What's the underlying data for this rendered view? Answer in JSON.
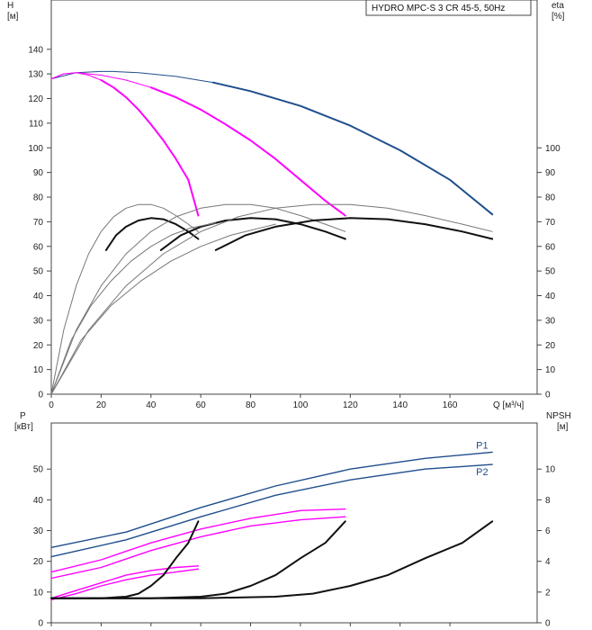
{
  "chart_data": [
    {
      "type": "line",
      "panel": "head-efficiency",
      "title": "HYDRO MPC-S 3 CR 45-5, 50Hz",
      "xlabel": "Q [м³/ч]",
      "ylabel": "H",
      "ylabel_unit": "[м]",
      "y2label": "eta",
      "y2label_unit": "[%]",
      "xlim": [
        0,
        195
      ],
      "ylim": [
        0,
        150
      ],
      "y2lim": [
        0,
        150
      ],
      "x_ticks": [
        "0",
        "20",
        "40",
        "60",
        "80",
        "100",
        "120",
        "140",
        "160",
        "Q [м³/ч]"
      ],
      "y_ticks": [
        "0",
        "10",
        "20",
        "30",
        "40",
        "50",
        "60",
        "70",
        "80",
        "90",
        "100",
        "110",
        "120",
        "130",
        "140"
      ],
      "y2_ticks": [
        "0",
        "10",
        "20",
        "30",
        "40",
        "50",
        "60",
        "70",
        "80",
        "90",
        "100"
      ],
      "colors": {
        "head_three_pumps": "#1f4e8c",
        "head_partial": "#ff00ff",
        "efficiency": "#111111",
        "efficiency_thin": "#777777"
      },
      "series": [
        {
          "kind": "head",
          "style": "thin-dark",
          "x": [
            0,
            10,
            20,
            25,
            35,
            50,
            65,
            80,
            100,
            120,
            140,
            160,
            177
          ],
          "y": [
            128,
            130.5,
            131,
            131,
            130.5,
            129,
            126.5,
            123,
            117,
            109,
            99,
            87,
            73
          ]
        },
        {
          "kind": "head",
          "style": "bold-dark",
          "x": [
            65,
            80,
            100,
            120,
            140,
            160,
            177
          ],
          "y": [
            126.5,
            123,
            117,
            109,
            99,
            87,
            73
          ]
        },
        {
          "kind": "head",
          "style": "thin-magenta",
          "x": [
            0,
            5,
            10,
            20,
            30,
            40,
            50,
            60,
            70,
            80,
            90,
            100,
            110,
            118
          ],
          "y": [
            128,
            130,
            130.5,
            129.5,
            127.5,
            124.5,
            120.5,
            115.5,
            109.5,
            103,
            95.5,
            87,
            78.5,
            72.5
          ]
        },
        {
          "kind": "head",
          "style": "bold-magenta",
          "x": [
            40,
            50,
            60,
            70,
            80,
            90,
            100,
            110,
            118
          ],
          "y": [
            124.5,
            120.5,
            115.5,
            109.5,
            103,
            95.5,
            87,
            78.5,
            72.5
          ]
        },
        {
          "kind": "head",
          "style": "thin-magenta",
          "x": [
            0,
            5,
            10,
            15,
            20,
            25,
            30,
            35,
            40,
            45,
            50,
            55,
            59
          ],
          "y": [
            128,
            130,
            130.5,
            129.5,
            127.5,
            124.5,
            120.5,
            115.5,
            109.5,
            103,
            95.5,
            87,
            72.5
          ]
        },
        {
          "kind": "head",
          "style": "bold-magenta",
          "x": [
            20,
            25,
            30,
            35,
            40,
            45,
            50,
            55,
            59
          ],
          "y": [
            127.5,
            124.5,
            120.5,
            115.5,
            109.5,
            103,
            95.5,
            87,
            72.5
          ]
        },
        {
          "kind": "eta",
          "style": "thin-gray",
          "x": [
            0,
            5,
            10,
            15,
            20,
            25,
            30,
            35,
            40,
            45,
            50,
            55,
            59
          ],
          "y": [
            0,
            26,
            44,
            57,
            66,
            72,
            75.5,
            77,
            77,
            75.5,
            72.5,
            69,
            66
          ]
        },
        {
          "kind": "eta",
          "style": "bold",
          "x": [
            22,
            26,
            30,
            35,
            40,
            45,
            50,
            55,
            59
          ],
          "y": [
            58.5,
            64.5,
            68,
            70.5,
            71.5,
            71,
            69,
            66,
            63
          ]
        },
        {
          "kind": "eta",
          "style": "thin-gray",
          "x": [
            0,
            10,
            20,
            30,
            40,
            50,
            60,
            70,
            80,
            90,
            100,
            110,
            118
          ],
          "y": [
            0,
            26,
            44,
            57,
            66,
            72,
            75.5,
            77,
            77,
            75.5,
            72.5,
            69,
            66
          ]
        },
        {
          "kind": "eta",
          "style": "bold",
          "x": [
            44,
            52,
            60,
            70,
            80,
            90,
            100,
            110,
            118
          ],
          "y": [
            58.5,
            64.5,
            68,
            70.5,
            71.5,
            71,
            69,
            66,
            63
          ]
        },
        {
          "kind": "eta",
          "style": "thin-gray",
          "x": [
            0,
            15,
            30,
            45,
            60,
            75,
            90,
            105,
            120,
            135,
            150,
            165,
            177
          ],
          "y": [
            0,
            26,
            44,
            57,
            66,
            72,
            75.5,
            77,
            77,
            75.5,
            72.5,
            69,
            66
          ]
        },
        {
          "kind": "eta",
          "style": "bold",
          "x": [
            66,
            78,
            90,
            105,
            120,
            135,
            150,
            165,
            177
          ],
          "y": [
            58.5,
            64.5,
            68,
            70.5,
            71.5,
            71,
            69,
            66,
            63
          ]
        },
        {
          "kind": "eta",
          "style": "thin-gray",
          "x": [
            0,
            8,
            16,
            24,
            32,
            40,
            48,
            56,
            66
          ],
          "y": [
            0,
            22,
            36,
            46,
            54,
            60,
            64.5,
            67.5,
            69.5
          ]
        },
        {
          "kind": "eta",
          "style": "thin-gray",
          "x": [
            0,
            12,
            24,
            36,
            48,
            60,
            72,
            84,
            90
          ],
          "y": [
            0,
            22,
            36,
            46,
            54,
            60,
            64.5,
            67.5,
            69
          ]
        }
      ]
    },
    {
      "type": "line",
      "panel": "power-npsh",
      "title": "",
      "ylabel": "P",
      "ylabel_unit": "[кВт]",
      "y2label": "NPSH",
      "y2label_unit": "[м]",
      "xlim": [
        0,
        195
      ],
      "ylim": [
        0,
        65
      ],
      "y2lim": [
        0,
        13
      ],
      "y_ticks": [
        "0",
        "10",
        "20",
        "30",
        "40",
        "50"
      ],
      "y2_ticks": [
        "0",
        "2",
        "4",
        "6",
        "8",
        "10"
      ],
      "colors": {
        "power_three_pumps": "#1f4e8c",
        "power_partial": "#ff00ff",
        "npsh": "#111111"
      },
      "series": [
        {
          "name": "P1",
          "kind": "power",
          "style": "blue-pair",
          "x": [
            0,
            30,
            60,
            90,
            120,
            150,
            177
          ],
          "y": [
            24.5,
            29.5,
            37.5,
            44.5,
            50,
            53.5,
            55.5
          ]
        },
        {
          "name": "P2",
          "kind": "power",
          "style": "blue-pair",
          "x": [
            0,
            30,
            60,
            90,
            120,
            150,
            177
          ],
          "y": [
            21.5,
            27,
            34.5,
            41.5,
            46.5,
            50,
            51.5
          ]
        },
        {
          "kind": "power",
          "style": "magenta-pair",
          "x": [
            0,
            20,
            40,
            60,
            80,
            100,
            118
          ],
          "y": [
            16.5,
            20.5,
            26,
            30.5,
            34,
            36.5,
            37
          ]
        },
        {
          "kind": "power",
          "style": "magenta-pair",
          "x": [
            0,
            20,
            40,
            60,
            80,
            100,
            118
          ],
          "y": [
            14.5,
            18,
            23.5,
            28,
            31.5,
            33.5,
            34.5
          ]
        },
        {
          "kind": "power",
          "style": "magenta-pair",
          "x": [
            0,
            10,
            20,
            30,
            40,
            50,
            59
          ],
          "y": [
            8,
            10.5,
            13,
            15.5,
            17,
            18,
            18.5
          ]
        },
        {
          "kind": "power",
          "style": "magenta-pair",
          "x": [
            0,
            10,
            20,
            30,
            40,
            50,
            59
          ],
          "y": [
            7.5,
            9.5,
            12,
            14,
            15.5,
            16.5,
            17.5
          ]
        },
        {
          "kind": "npsh",
          "style": "bold",
          "x": [
            0,
            20,
            30,
            35,
            40,
            45,
            50,
            55,
            59
          ],
          "y": [
            1.6,
            1.6,
            1.7,
            1.9,
            2.4,
            3.1,
            4.2,
            5.2,
            6.6
          ]
        },
        {
          "kind": "npsh",
          "style": "bold",
          "x": [
            0,
            40,
            60,
            70,
            80,
            90,
            100,
            110,
            118
          ],
          "y": [
            1.6,
            1.6,
            1.7,
            1.9,
            2.4,
            3.1,
            4.2,
            5.2,
            6.6
          ]
        },
        {
          "kind": "npsh",
          "style": "bold",
          "x": [
            0,
            60,
            90,
            105,
            120,
            135,
            150,
            165,
            177
          ],
          "y": [
            1.6,
            1.6,
            1.7,
            1.9,
            2.4,
            3.1,
            4.2,
            5.2,
            6.6
          ]
        }
      ]
    }
  ]
}
